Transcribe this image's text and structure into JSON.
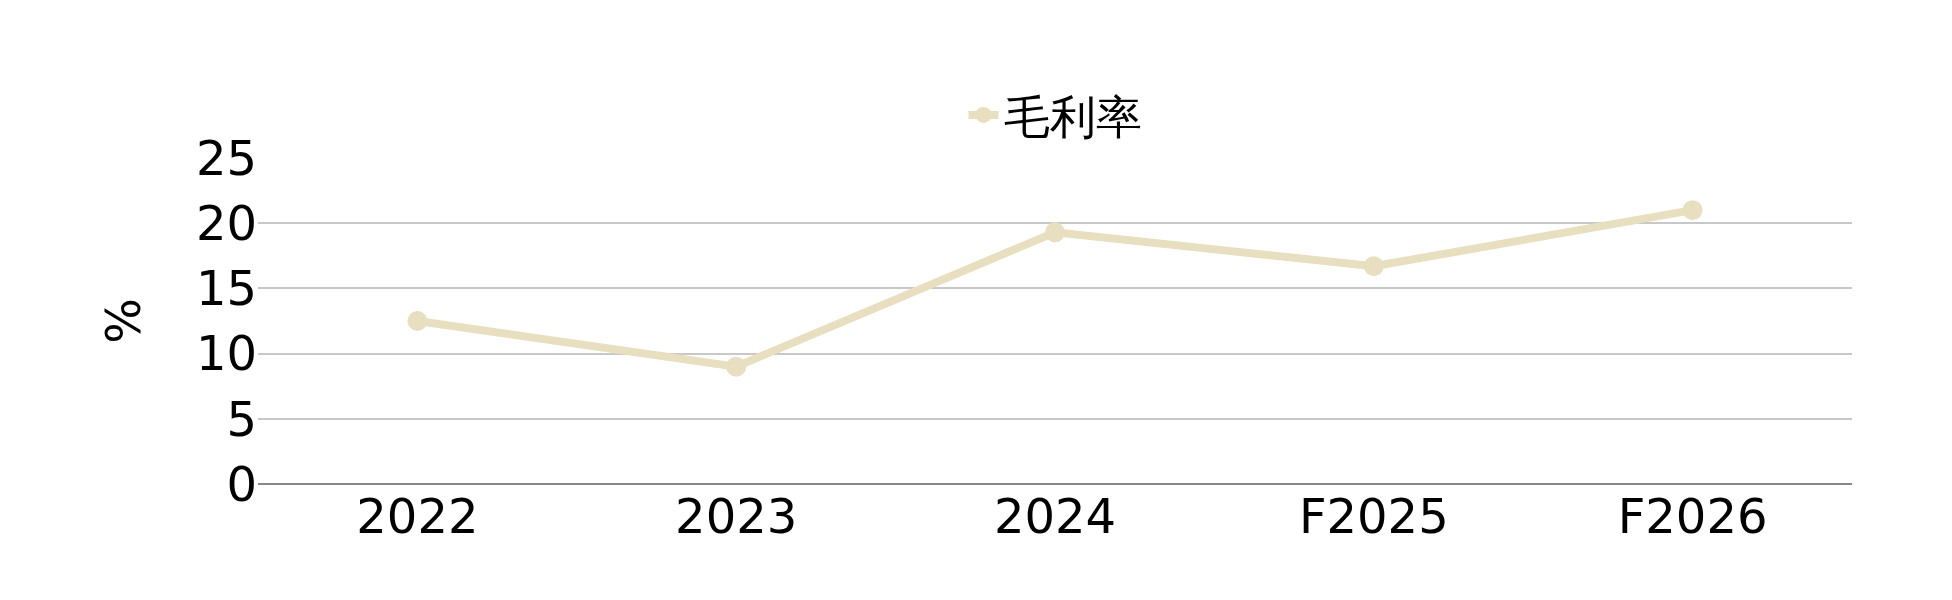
{
  "chart_data": {
    "type": "line",
    "categories": [
      "2022",
      "2023",
      "2024",
      "F2025",
      "F2026"
    ],
    "series": [
      {
        "name": "毛利率",
        "color": "#e8dfc0",
        "values": [
          12.5,
          9.0,
          19.3,
          16.7,
          21.0
        ]
      }
    ],
    "ylabel": "%",
    "ylim": [
      0,
      25
    ],
    "yticks": [
      0,
      5,
      10,
      15,
      20,
      25
    ],
    "grid": "y",
    "legend": "top",
    "marker": "circle",
    "line_style": "solid"
  }
}
